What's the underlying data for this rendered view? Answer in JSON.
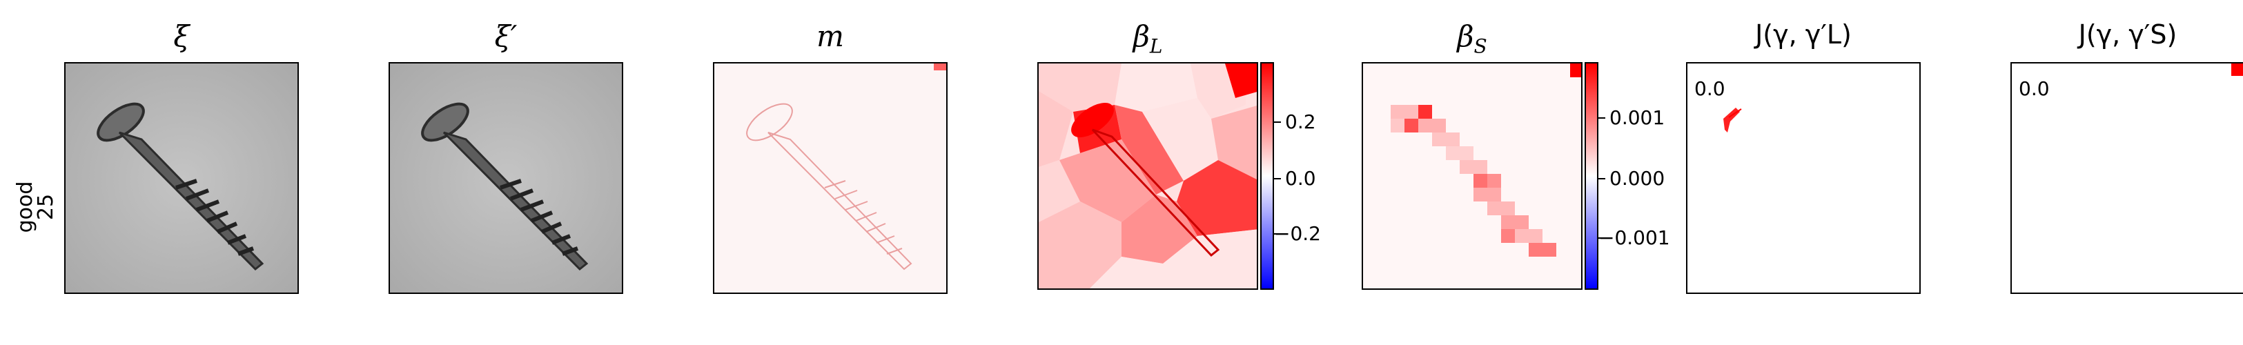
{
  "row": {
    "label_line1": "good",
    "label_line2": "25"
  },
  "panels": [
    {
      "title": "ξ"
    },
    {
      "title": "ξ′"
    },
    {
      "title": "m"
    },
    {
      "title": "βL"
    },
    {
      "title": "βS"
    },
    {
      "title": "J(γ, γ′L)",
      "value": "0.0"
    },
    {
      "title": "J(γ, γ′S)",
      "value": "0.0"
    }
  ],
  "colorbars": {
    "beta_L": {
      "ticks": [
        "0.2",
        "0.0",
        "−0.2"
      ]
    },
    "beta_S": {
      "ticks": [
        "0.001",
        "0.000",
        "−0.001"
      ]
    }
  },
  "colors": {
    "red": "#ff0000",
    "blue": "#0000ff",
    "gray_bg": "#b4b4b4"
  }
}
